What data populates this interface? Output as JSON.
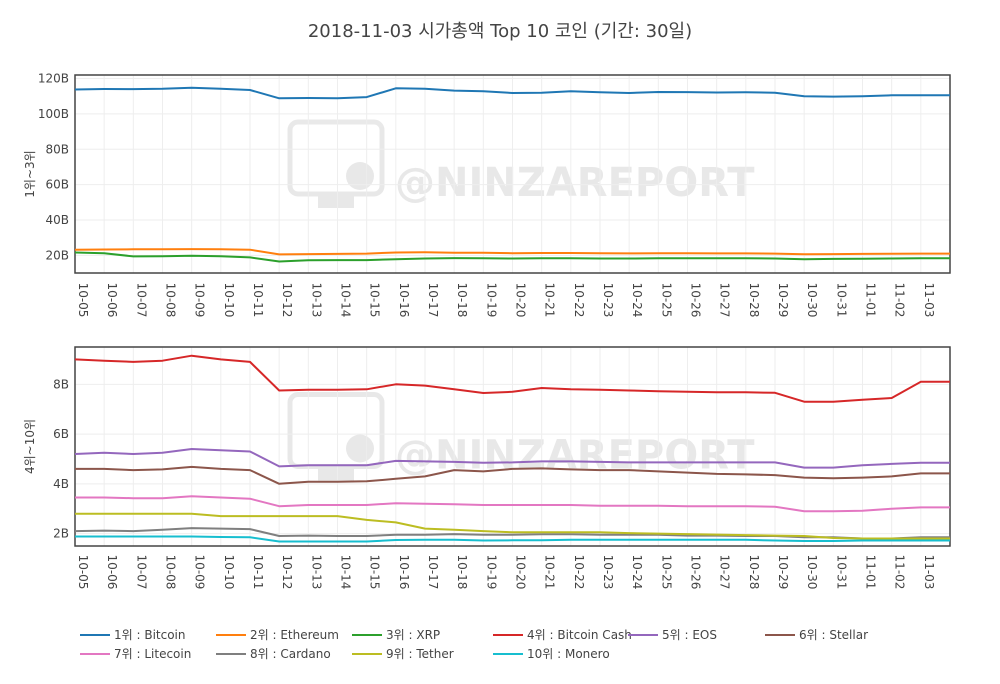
{
  "title": "2018-11-03 시가총액 Top 10 코인 (기간: 30일)",
  "watermark": "@NINZAREPORT",
  "colors": {
    "Bitcoin": "#1f77b4",
    "Ethereum": "#ff7f0e",
    "XRP": "#2ca02c",
    "Bitcoin Cash": "#d62728",
    "EOS": "#9467bd",
    "Stellar": "#8c564b",
    "Litecoin": "#e377c2",
    "Cardano": "#7f7f7f",
    "Tether": "#bcbd22",
    "Monero": "#17becf"
  },
  "chart_data": [
    {
      "type": "line",
      "title": "",
      "ylabel": "1위~3위",
      "ylim": [
        10,
        122
      ],
      "yticks": [
        20,
        40,
        60,
        80,
        100,
        120
      ],
      "ytick_labels": [
        "20B",
        "40B",
        "60B",
        "80B",
        "100B",
        "120B"
      ],
      "categories": [
        "10-05",
        "10-06",
        "10-07",
        "10-08",
        "10-09",
        "10-10",
        "10-11",
        "10-12",
        "10-13",
        "10-14",
        "10-15",
        "10-16",
        "10-17",
        "10-18",
        "10-19",
        "10-20",
        "10-21",
        "10-22",
        "10-23",
        "10-24",
        "10-25",
        "10-26",
        "10-27",
        "10-28",
        "10-29",
        "10-30",
        "10-31",
        "11-01",
        "11-02",
        "11-03"
      ],
      "grid": true,
      "series": [
        {
          "name": "1위 : Bitcoin",
          "key": "Bitcoin",
          "values": [
            113.8,
            114.1,
            114.0,
            114.2,
            114.8,
            114.2,
            113.5,
            108.8,
            109.0,
            108.9,
            109.5,
            114.5,
            114.2,
            113.2,
            112.8,
            111.8,
            112.0,
            112.8,
            112.2,
            111.8,
            112.4,
            112.3,
            112.1,
            112.2,
            112.0,
            110.0,
            109.8,
            110.0,
            110.5,
            110.5
          ]
        },
        {
          "name": "2위 : Ethereum",
          "key": "Ethereum",
          "values": [
            23.2,
            23.3,
            23.4,
            23.4,
            23.5,
            23.4,
            23.2,
            20.5,
            20.7,
            20.8,
            21.0,
            21.6,
            21.7,
            21.5,
            21.4,
            21.2,
            21.3,
            21.3,
            21.2,
            21.1,
            21.2,
            21.2,
            21.1,
            21.1,
            21.0,
            20.6,
            20.7,
            20.8,
            20.9,
            21.0
          ]
        },
        {
          "name": "3위 : XRP",
          "key": "XRP",
          "values": [
            21.6,
            21.2,
            19.4,
            19.5,
            19.8,
            19.5,
            18.8,
            16.5,
            17.2,
            17.3,
            17.3,
            17.8,
            18.2,
            18.4,
            18.3,
            18.2,
            18.3,
            18.3,
            18.2,
            18.2,
            18.3,
            18.3,
            18.3,
            18.3,
            18.2,
            17.8,
            18.0,
            18.1,
            18.2,
            18.3
          ]
        }
      ]
    },
    {
      "type": "line",
      "title": "",
      "ylabel": "4위~10위",
      "ylim": [
        1.5,
        9.5
      ],
      "yticks": [
        2,
        4,
        6,
        8
      ],
      "ytick_labels": [
        "2B",
        "4B",
        "6B",
        "8B"
      ],
      "categories": [
        "10-05",
        "10-06",
        "10-07",
        "10-08",
        "10-09",
        "10-10",
        "10-11",
        "10-12",
        "10-13",
        "10-14",
        "10-15",
        "10-16",
        "10-17",
        "10-18",
        "10-19",
        "10-20",
        "10-21",
        "10-22",
        "10-23",
        "10-24",
        "10-25",
        "10-26",
        "10-27",
        "10-28",
        "10-29",
        "10-30",
        "10-31",
        "11-01",
        "11-02",
        "11-03"
      ],
      "grid": true,
      "series": [
        {
          "name": "4위 : Bitcoin Cash",
          "key": "Bitcoin Cash",
          "values": [
            9.0,
            8.95,
            8.9,
            8.95,
            9.15,
            9.0,
            8.9,
            7.75,
            7.78,
            7.78,
            7.8,
            8.0,
            7.95,
            7.8,
            7.65,
            7.7,
            7.85,
            7.8,
            7.78,
            7.75,
            7.72,
            7.7,
            7.68,
            7.68,
            7.66,
            7.3,
            7.3,
            7.38,
            7.45,
            8.1
          ]
        },
        {
          "name": "5위 : EOS",
          "key": "EOS",
          "values": [
            5.2,
            5.25,
            5.2,
            5.25,
            5.4,
            5.35,
            5.3,
            4.7,
            4.75,
            4.75,
            4.75,
            4.92,
            4.9,
            4.88,
            4.85,
            4.86,
            4.9,
            4.9,
            4.88,
            4.86,
            4.86,
            4.86,
            4.86,
            4.86,
            4.86,
            4.65,
            4.65,
            4.75,
            4.8,
            4.85
          ]
        },
        {
          "name": "6위 : Stellar",
          "key": "Stellar",
          "values": [
            4.6,
            4.6,
            4.55,
            4.58,
            4.68,
            4.6,
            4.55,
            4.0,
            4.08,
            4.08,
            4.1,
            4.2,
            4.3,
            4.55,
            4.5,
            4.6,
            4.62,
            4.58,
            4.55,
            4.55,
            4.5,
            4.45,
            4.4,
            4.38,
            4.35,
            4.25,
            4.22,
            4.25,
            4.3,
            4.42
          ]
        },
        {
          "name": "7위 : Litecoin",
          "key": "Litecoin",
          "values": [
            3.45,
            3.45,
            3.42,
            3.42,
            3.5,
            3.45,
            3.4,
            3.1,
            3.15,
            3.15,
            3.15,
            3.22,
            3.2,
            3.18,
            3.15,
            3.15,
            3.15,
            3.15,
            3.12,
            3.12,
            3.12,
            3.1,
            3.1,
            3.1,
            3.08,
            2.9,
            2.9,
            2.92,
            3.0,
            3.05
          ]
        },
        {
          "name": "8위 : Cardano",
          "key": "Cardano",
          "values": [
            2.1,
            2.12,
            2.1,
            2.15,
            2.22,
            2.2,
            2.18,
            1.9,
            1.92,
            1.9,
            1.9,
            1.95,
            1.95,
            1.98,
            1.95,
            1.95,
            1.97,
            1.97,
            1.95,
            1.95,
            1.95,
            1.92,
            1.92,
            1.9,
            1.9,
            1.85,
            1.85,
            1.8,
            1.8,
            1.85
          ]
        },
        {
          "name": "9위 : Tether",
          "key": "Tether",
          "values": [
            2.8,
            2.8,
            2.8,
            2.8,
            2.8,
            2.7,
            2.7,
            2.7,
            2.7,
            2.7,
            2.55,
            2.45,
            2.2,
            2.15,
            2.1,
            2.05,
            2.05,
            2.05,
            2.05,
            2.02,
            2.0,
            1.98,
            1.96,
            1.94,
            1.92,
            1.9,
            1.82,
            1.8,
            1.8,
            1.8
          ]
        },
        {
          "name": "10위 : Monero",
          "key": "Monero",
          "values": [
            1.88,
            1.88,
            1.88,
            1.88,
            1.88,
            1.86,
            1.85,
            1.68,
            1.68,
            1.68,
            1.68,
            1.74,
            1.75,
            1.75,
            1.72,
            1.73,
            1.73,
            1.75,
            1.75,
            1.75,
            1.75,
            1.75,
            1.75,
            1.75,
            1.72,
            1.7,
            1.7,
            1.72,
            1.72,
            1.72
          ]
        }
      ]
    }
  ],
  "legend": {
    "placement": "bottom",
    "items": [
      {
        "label": "1위 : Bitcoin",
        "key": "Bitcoin"
      },
      {
        "label": "2위 : Ethereum",
        "key": "Ethereum"
      },
      {
        "label": "3위 : XRP",
        "key": "XRP"
      },
      {
        "label": "4위 : Bitcoin Cash",
        "key": "Bitcoin Cash"
      },
      {
        "label": "5위 : EOS",
        "key": "EOS"
      },
      {
        "label": "6위 : Stellar",
        "key": "Stellar"
      },
      {
        "label": "7위 : Litecoin",
        "key": "Litecoin"
      },
      {
        "label": "8위 : Cardano",
        "key": "Cardano"
      },
      {
        "label": "9위 : Tether",
        "key": "Tether"
      },
      {
        "label": "10위 : Monero",
        "key": "Monero"
      }
    ]
  }
}
